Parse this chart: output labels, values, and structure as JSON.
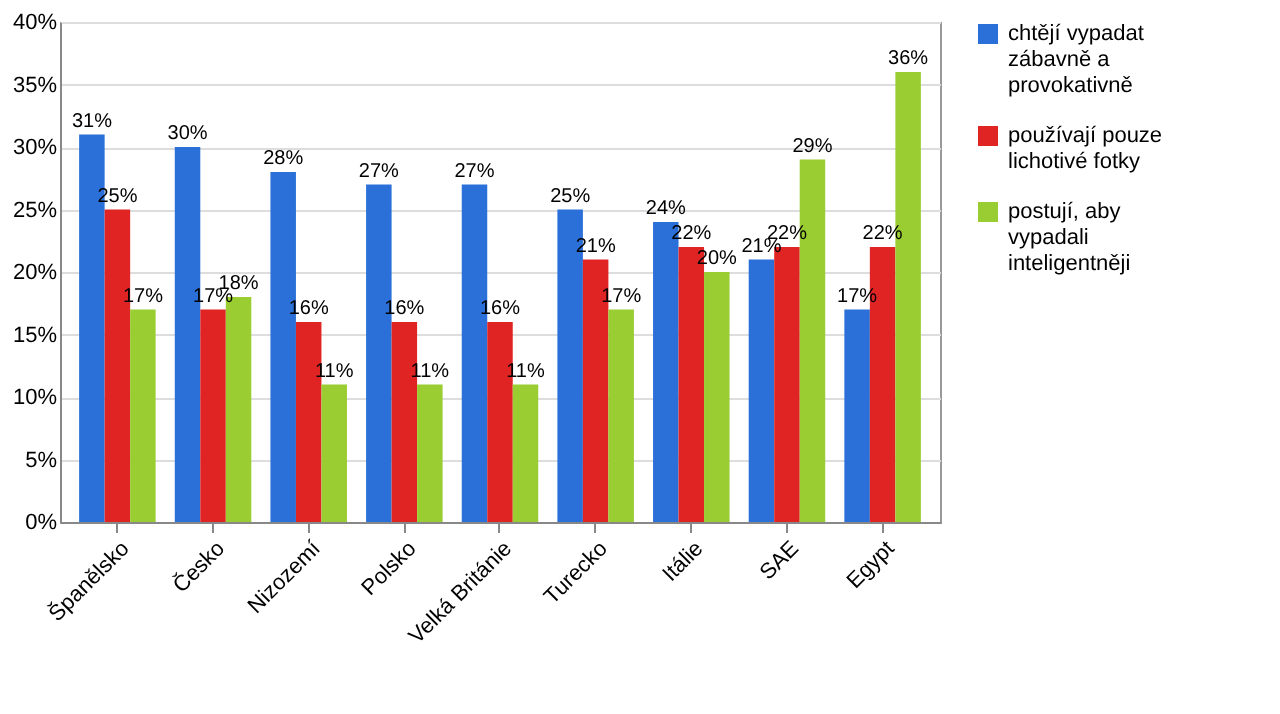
{
  "chart_data": {
    "type": "bar",
    "categories": [
      "Španělsko",
      "Česko",
      "Nizozemí",
      "Polsko",
      "Velká Británie",
      "Turecko",
      "Itálie",
      "SAE",
      "Egypt"
    ],
    "series": [
      {
        "name": "chtějí vypadat zábavně a provokativně",
        "color": "#2a70d8",
        "values": [
          31,
          30,
          28,
          27,
          27,
          25,
          24,
          21,
          17
        ],
        "value_labels": [
          "31%",
          "30%",
          "28%",
          "27%",
          "27%",
          "25%",
          "24%",
          "21%",
          "17%"
        ]
      },
      {
        "name": "používají pouze lichotivé fotky",
        "color": "#e02424",
        "values": [
          25,
          17,
          16,
          16,
          16,
          21,
          22,
          22,
          22
        ],
        "value_labels": [
          "25%",
          "17%",
          "16%",
          "16%",
          "16%",
          "21%",
          "22%",
          "22%",
          "22%"
        ]
      },
      {
        "name": "postují, aby vypadali inteligentněji",
        "color": "#9acd32",
        "values": [
          17,
          18,
          11,
          11,
          11,
          17,
          20,
          29,
          36
        ],
        "value_labels": [
          "17%",
          "18%",
          "11%",
          "11%",
          "11%",
          "17%",
          "20%",
          "29%",
          "36%"
        ]
      }
    ],
    "ylim": [
      0,
      40
    ],
    "yticks": [
      {
        "value": 0,
        "label": "0%"
      },
      {
        "value": 5,
        "label": "5%"
      },
      {
        "value": 10,
        "label": "10%"
      },
      {
        "value": 15,
        "label": "15%"
      },
      {
        "value": 20,
        "label": "20%"
      },
      {
        "value": 25,
        "label": "25%"
      },
      {
        "value": 30,
        "label": "30%"
      },
      {
        "value": 35,
        "label": "35%"
      },
      {
        "value": 40,
        "label": "40%"
      }
    ],
    "grid": "y",
    "legend": "right"
  }
}
